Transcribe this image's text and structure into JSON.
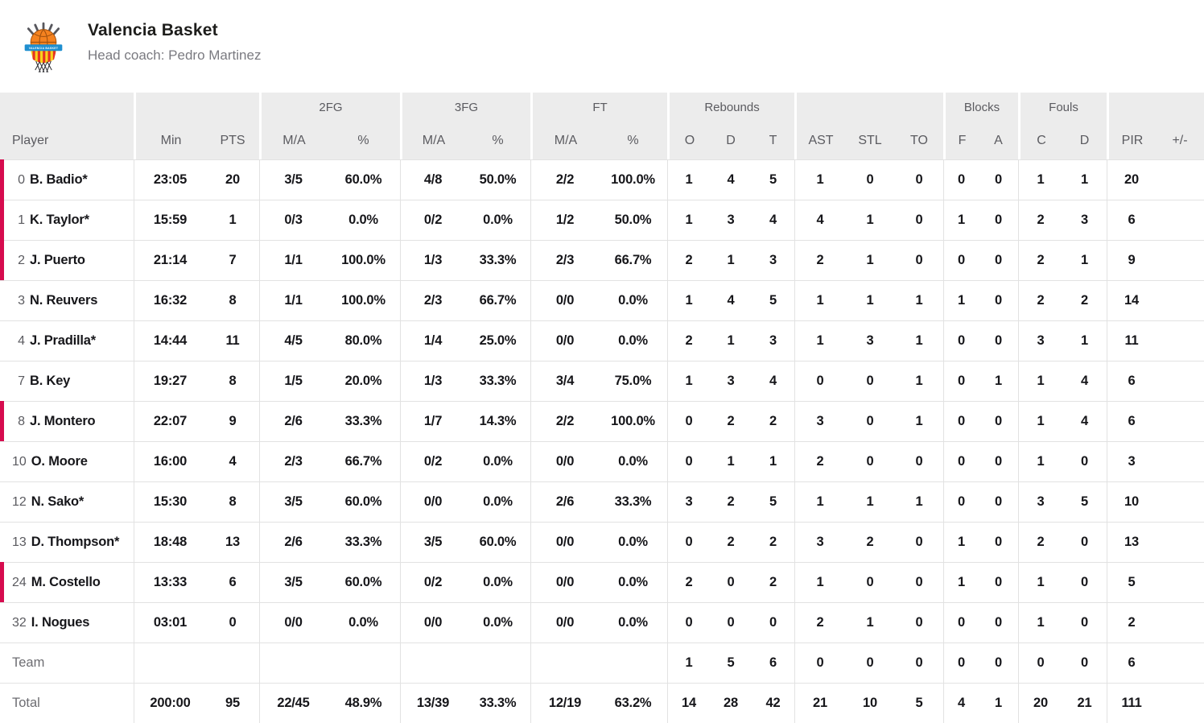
{
  "team": {
    "name": "Valencia Basket",
    "head_coach": "Head coach: Pedro Martinez"
  },
  "colors": {
    "accent_on_court": "#d60b4e",
    "header_background": "#ececec",
    "logo_orange": "#f5821f",
    "logo_blue": "#1f8fd0",
    "logo_red": "#e63323",
    "logo_yellow": "#f8d21c"
  },
  "logo_text": "VALENCIA BASKET",
  "table": {
    "groups": [
      {
        "label": "",
        "span": 1
      },
      {
        "label": "",
        "span": 2
      },
      {
        "label": "2FG",
        "span": 2
      },
      {
        "label": "3FG",
        "span": 2
      },
      {
        "label": "FT",
        "span": 2
      },
      {
        "label": "Rebounds",
        "span": 3
      },
      {
        "label": "",
        "span": 3
      },
      {
        "label": "Blocks",
        "span": 2
      },
      {
        "label": "Fouls",
        "span": 2
      },
      {
        "label": "",
        "span": 2
      }
    ],
    "columns": [
      "Player",
      "Min",
      "PTS",
      "M/A",
      "%",
      "M/A",
      "%",
      "M/A",
      "%",
      "O",
      "D",
      "T",
      "AST",
      "STL",
      "TO",
      "F",
      "A",
      "C",
      "D",
      "PIR",
      "+/-"
    ],
    "rows": [
      {
        "type": "player",
        "number": "0",
        "name": "B. Badio*",
        "on_court": true,
        "stats": [
          "23:05",
          "20",
          "3/5",
          "60.0%",
          "4/8",
          "50.0%",
          "2/2",
          "100.0%",
          "1",
          "4",
          "5",
          "1",
          "0",
          "0",
          "0",
          "0",
          "1",
          "1",
          "20",
          ""
        ]
      },
      {
        "type": "player",
        "number": "1",
        "name": "K. Taylor*",
        "on_court": true,
        "stats": [
          "15:59",
          "1",
          "0/3",
          "0.0%",
          "0/2",
          "0.0%",
          "1/2",
          "50.0%",
          "1",
          "3",
          "4",
          "4",
          "1",
          "0",
          "1",
          "0",
          "2",
          "3",
          "6",
          ""
        ]
      },
      {
        "type": "player",
        "number": "2",
        "name": "J. Puerto",
        "on_court": true,
        "stats": [
          "21:14",
          "7",
          "1/1",
          "100.0%",
          "1/3",
          "33.3%",
          "2/3",
          "66.7%",
          "2",
          "1",
          "3",
          "2",
          "1",
          "0",
          "0",
          "0",
          "2",
          "1",
          "9",
          ""
        ]
      },
      {
        "type": "player",
        "number": "3",
        "name": "N. Reuvers",
        "on_court": false,
        "stats": [
          "16:32",
          "8",
          "1/1",
          "100.0%",
          "2/3",
          "66.7%",
          "0/0",
          "0.0%",
          "1",
          "4",
          "5",
          "1",
          "1",
          "1",
          "1",
          "0",
          "2",
          "2",
          "14",
          ""
        ]
      },
      {
        "type": "player",
        "number": "4",
        "name": "J. Pradilla*",
        "on_court": false,
        "stats": [
          "14:44",
          "11",
          "4/5",
          "80.0%",
          "1/4",
          "25.0%",
          "0/0",
          "0.0%",
          "2",
          "1",
          "3",
          "1",
          "3",
          "1",
          "0",
          "0",
          "3",
          "1",
          "11",
          ""
        ]
      },
      {
        "type": "player",
        "number": "7",
        "name": "B. Key",
        "on_court": false,
        "stats": [
          "19:27",
          "8",
          "1/5",
          "20.0%",
          "1/3",
          "33.3%",
          "3/4",
          "75.0%",
          "1",
          "3",
          "4",
          "0",
          "0",
          "1",
          "0",
          "1",
          "1",
          "4",
          "6",
          ""
        ]
      },
      {
        "type": "player",
        "number": "8",
        "name": "J. Montero",
        "on_court": true,
        "stats": [
          "22:07",
          "9",
          "2/6",
          "33.3%",
          "1/7",
          "14.3%",
          "2/2",
          "100.0%",
          "0",
          "2",
          "2",
          "3",
          "0",
          "1",
          "0",
          "0",
          "1",
          "4",
          "6",
          ""
        ]
      },
      {
        "type": "player",
        "number": "10",
        "name": "O. Moore",
        "on_court": false,
        "stats": [
          "16:00",
          "4",
          "2/3",
          "66.7%",
          "0/2",
          "0.0%",
          "0/0",
          "0.0%",
          "0",
          "1",
          "1",
          "2",
          "0",
          "0",
          "0",
          "0",
          "1",
          "0",
          "3",
          ""
        ]
      },
      {
        "type": "player",
        "number": "12",
        "name": "N. Sako*",
        "on_court": false,
        "stats": [
          "15:30",
          "8",
          "3/5",
          "60.0%",
          "0/0",
          "0.0%",
          "2/6",
          "33.3%",
          "3",
          "2",
          "5",
          "1",
          "1",
          "1",
          "0",
          "0",
          "3",
          "5",
          "10",
          ""
        ]
      },
      {
        "type": "player",
        "number": "13",
        "name": "D. Thompson*",
        "on_court": false,
        "stats": [
          "18:48",
          "13",
          "2/6",
          "33.3%",
          "3/5",
          "60.0%",
          "0/0",
          "0.0%",
          "0",
          "2",
          "2",
          "3",
          "2",
          "0",
          "1",
          "0",
          "2",
          "0",
          "13",
          ""
        ]
      },
      {
        "type": "player",
        "number": "24",
        "name": "M. Costello",
        "on_court": true,
        "stats": [
          "13:33",
          "6",
          "3/5",
          "60.0%",
          "0/2",
          "0.0%",
          "0/0",
          "0.0%",
          "2",
          "0",
          "2",
          "1",
          "0",
          "0",
          "1",
          "0",
          "1",
          "0",
          "5",
          ""
        ]
      },
      {
        "type": "player",
        "number": "32",
        "name": "I. Nogues",
        "on_court": false,
        "stats": [
          "03:01",
          "0",
          "0/0",
          "0.0%",
          "0/0",
          "0.0%",
          "0/0",
          "0.0%",
          "0",
          "0",
          "0",
          "2",
          "1",
          "0",
          "0",
          "0",
          "1",
          "0",
          "2",
          ""
        ]
      },
      {
        "type": "team",
        "number": "",
        "name": "Team",
        "on_court": false,
        "stats": [
          "",
          "",
          "",
          "",
          "",
          "",
          "",
          "",
          "1",
          "5",
          "6",
          "0",
          "0",
          "0",
          "0",
          "0",
          "0",
          "0",
          "6",
          ""
        ]
      },
      {
        "type": "total",
        "number": "",
        "name": "Total",
        "on_court": false,
        "stats": [
          "200:00",
          "95",
          "22/45",
          "48.9%",
          "13/39",
          "33.3%",
          "12/19",
          "63.2%",
          "14",
          "28",
          "42",
          "21",
          "10",
          "5",
          "4",
          "1",
          "20",
          "21",
          "111",
          ""
        ]
      }
    ]
  }
}
